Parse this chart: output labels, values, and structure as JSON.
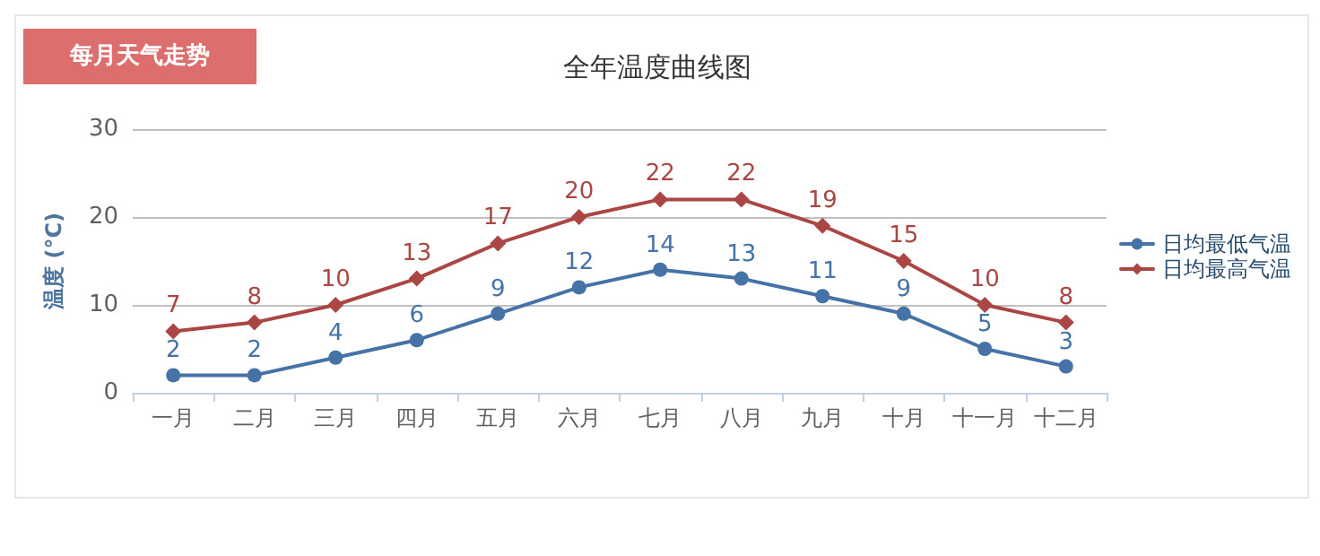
{
  "chart_data": {
    "type": "line",
    "title": "全年温度曲线图",
    "annotations": [
      "每月天气走势"
    ],
    "ylabel": "温度 (°C)",
    "categories": [
      "一月",
      "二月",
      "三月",
      "四月",
      "五月",
      "六月",
      "七月",
      "八月",
      "九月",
      "十月",
      "十一月",
      "十二月"
    ],
    "series": [
      {
        "name": "日均最低气温",
        "color": "#4572a7",
        "marker": "circle",
        "values": [
          2,
          2,
          4,
          6,
          9,
          12,
          14,
          13,
          11,
          9,
          5,
          3
        ]
      },
      {
        "name": "日均最高气温",
        "color": "#aa4643",
        "marker": "diamond",
        "values": [
          7,
          8,
          10,
          13,
          17,
          20,
          22,
          22,
          19,
          15,
          10,
          8
        ]
      }
    ],
    "ylim": [
      0,
      30
    ],
    "yticks": [
      0,
      10,
      20,
      30
    ],
    "grid": "y",
    "legend": "right",
    "data_labels": true,
    "line_style": "solid"
  }
}
